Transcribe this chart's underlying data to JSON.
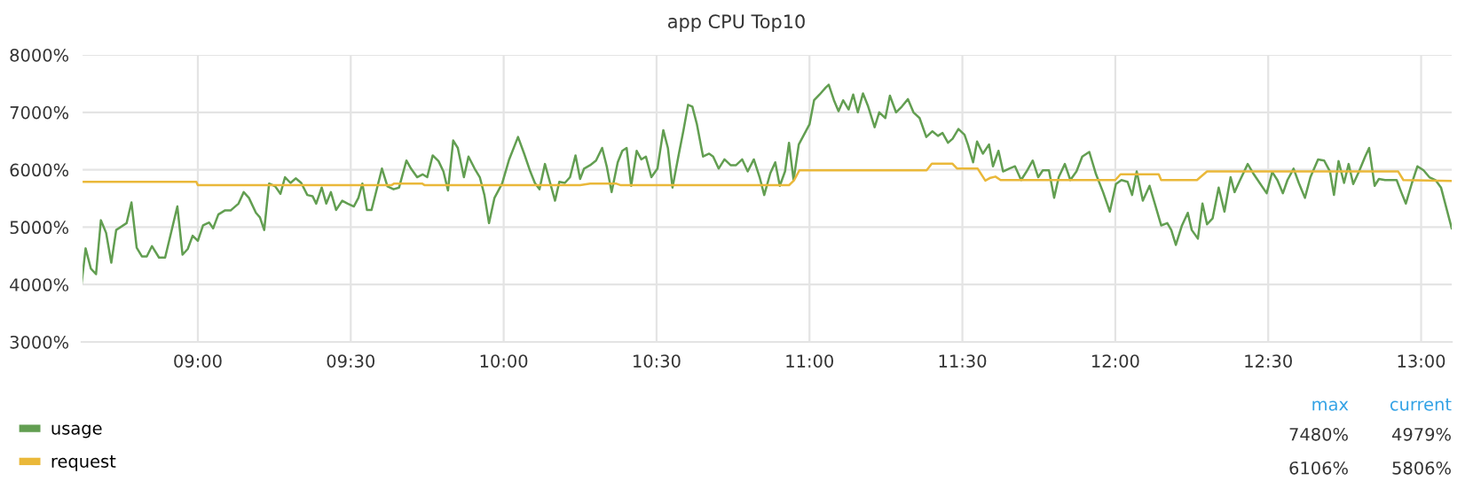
{
  "chart_data": {
    "type": "line",
    "title": "app CPU Top10",
    "xlim": [
      8.62,
      13.1
    ],
    "xticks": [
      {
        "value": 9,
        "label": "09:00"
      },
      {
        "value": 9.5,
        "label": "09:30"
      },
      {
        "value": 10,
        "label": "10:00"
      },
      {
        "value": 10.5,
        "label": "10:30"
      },
      {
        "value": 11,
        "label": "11:00"
      },
      {
        "value": 11.5,
        "label": "11:30"
      },
      {
        "value": 12,
        "label": "12:00"
      },
      {
        "value": 12.5,
        "label": "12:30"
      },
      {
        "value": 13,
        "label": "13:00"
      }
    ],
    "ylim": [
      3000,
      8000
    ],
    "yticks": [
      {
        "value": 3000,
        "label": "3000%"
      },
      {
        "value": 4000,
        "label": "4000%"
      },
      {
        "value": 5000,
        "label": "5000%"
      },
      {
        "value": 6000,
        "label": "6000%"
      },
      {
        "value": 7000,
        "label": "7000%"
      },
      {
        "value": 8000,
        "label": "8000%"
      }
    ],
    "grid": true,
    "legend": "bottom",
    "marker": "none",
    "line_style": "solid",
    "annotations": [
      "max",
      "current",
      "7480%",
      "4979%",
      "6106%",
      "5806%"
    ],
    "series": [
      {
        "name": "usage",
        "color": "#629e51",
        "x": [
          8.62,
          8.633,
          8.65,
          8.667,
          8.683,
          8.7,
          8.717,
          8.733,
          8.767,
          8.783,
          8.8,
          8.817,
          8.833,
          8.85,
          8.873,
          8.893,
          8.933,
          8.95,
          8.967,
          8.983,
          9.0,
          9.017,
          9.037,
          9.05,
          9.067,
          9.088,
          9.107,
          9.133,
          9.15,
          9.167,
          9.19,
          9.203,
          9.217,
          9.233,
          9.253,
          9.27,
          9.285,
          9.303,
          9.32,
          9.338,
          9.358,
          9.375,
          9.387,
          9.405,
          9.42,
          9.435,
          9.452,
          9.472,
          9.49,
          9.51,
          9.525,
          9.538,
          9.553,
          9.568,
          9.602,
          9.62,
          9.64,
          9.658,
          9.682,
          9.697,
          9.717,
          9.735,
          9.75,
          9.768,
          9.787,
          9.803,
          9.818,
          9.835,
          9.85,
          9.87,
          9.885,
          9.905,
          9.922,
          9.937,
          9.952,
          9.97,
          9.995,
          10.018,
          10.047,
          10.067,
          10.087,
          10.102,
          10.117,
          10.135,
          10.152,
          10.168,
          10.182,
          10.2,
          10.217,
          10.235,
          10.25,
          10.263,
          10.283,
          10.302,
          10.322,
          10.337,
          10.353,
          10.373,
          10.388,
          10.402,
          10.417,
          10.435,
          10.45,
          10.465,
          10.483,
          10.503,
          10.522,
          10.537,
          10.552,
          10.573,
          10.588,
          10.603,
          10.617,
          10.632,
          10.652,
          10.672,
          10.685,
          10.703,
          10.722,
          10.742,
          10.76,
          10.78,
          10.798,
          10.818,
          10.837,
          10.852,
          10.872,
          10.888,
          10.903,
          10.92,
          10.933,
          10.948,
          10.965,
          10.98,
          11.0,
          11.015,
          11.033,
          11.053,
          11.063,
          11.08,
          11.095,
          11.11,
          11.128,
          11.143,
          11.158,
          11.175,
          11.192,
          11.213,
          11.228,
          11.248,
          11.263,
          11.283,
          11.302,
          11.322,
          11.34,
          11.36,
          11.382,
          11.402,
          11.42,
          11.435,
          11.453,
          11.468,
          11.487,
          11.507,
          11.518,
          11.535,
          11.548,
          11.567,
          11.587,
          11.6,
          11.618,
          11.633,
          11.653,
          11.672,
          11.692,
          11.71,
          11.73,
          11.748,
          11.763,
          11.783,
          11.8,
          11.815,
          11.835,
          11.853,
          11.873,
          11.892,
          11.915,
          11.937,
          11.96,
          11.982,
          12.002,
          12.02,
          12.04,
          12.055,
          12.07,
          12.09,
          12.112,
          12.132,
          12.15,
          12.17,
          12.183,
          12.198,
          12.218,
          12.237,
          12.25,
          12.27,
          12.285,
          12.3,
          12.318,
          12.338,
          12.357,
          12.377,
          12.39,
          12.408,
          12.433,
          12.453,
          12.472,
          12.495,
          12.513,
          12.53,
          12.548,
          12.563,
          12.583,
          12.6,
          12.62,
          12.638,
          12.663,
          12.683,
          12.702,
          12.715,
          12.73,
          12.748,
          12.763,
          12.778,
          12.797,
          12.817,
          12.83,
          12.848,
          12.862,
          12.882,
          12.9,
          12.92,
          12.935,
          12.95,
          12.97,
          12.988,
          13.008,
          13.027,
          13.047,
          13.065,
          13.1
        ],
        "values": [
          4020,
          4630,
          4280,
          4180,
          5120,
          4900,
          4380,
          4950,
          5070,
          5430,
          4640,
          4490,
          4490,
          4670,
          4470,
          4470,
          5360,
          4520,
          4620,
          4850,
          4760,
          5030,
          5080,
          4980,
          5220,
          5290,
          5290,
          5410,
          5610,
          5510,
          5250,
          5170,
          4950,
          5760,
          5710,
          5580,
          5870,
          5770,
          5850,
          5770,
          5560,
          5540,
          5410,
          5690,
          5410,
          5610,
          5300,
          5460,
          5410,
          5360,
          5510,
          5760,
          5300,
          5300,
          6020,
          5710,
          5660,
          5690,
          6160,
          6020,
          5870,
          5920,
          5870,
          6250,
          6150,
          5970,
          5640,
          6510,
          6380,
          5870,
          6230,
          6020,
          5870,
          5560,
          5070,
          5510,
          5760,
          6180,
          6570,
          6280,
          5970,
          5770,
          5660,
          6100,
          5770,
          5460,
          5790,
          5770,
          5870,
          6250,
          5840,
          6020,
          6080,
          6160,
          6380,
          6060,
          5610,
          6130,
          6330,
          6380,
          5720,
          6330,
          6180,
          6230,
          5870,
          6020,
          6690,
          6380,
          5690,
          6280,
          6690,
          7130,
          7100,
          6790,
          6230,
          6280,
          6230,
          6020,
          6180,
          6080,
          6080,
          6180,
          5970,
          6180,
          5870,
          5560,
          5940,
          6130,
          5720,
          5970,
          6470,
          5820,
          6440,
          6590,
          6790,
          7210,
          7310,
          7430,
          7480,
          7210,
          7020,
          7210,
          7050,
          7310,
          7000,
          7330,
          7100,
          6740,
          7000,
          6900,
          7290,
          7000,
          7100,
          7230,
          7000,
          6900,
          6570,
          6670,
          6590,
          6640,
          6470,
          6540,
          6710,
          6610,
          6440,
          6130,
          6490,
          6280,
          6440,
          6060,
          6330,
          5970,
          6020,
          6060,
          5820,
          5970,
          6160,
          5870,
          5990,
          5990,
          5510,
          5870,
          6100,
          5820,
          5970,
          6230,
          6310,
          5920,
          5610,
          5270,
          5750,
          5820,
          5790,
          5560,
          5970,
          5460,
          5720,
          5360,
          5030,
          5070,
          4950,
          4690,
          5030,
          5250,
          4950,
          4800,
          5410,
          5050,
          5150,
          5690,
          5270,
          5870,
          5610,
          5820,
          6100,
          5920,
          5770,
          5590,
          5960,
          5820,
          5590,
          5820,
          6020,
          5770,
          5510,
          5870,
          6180,
          6160,
          5970,
          5560,
          6150,
          5770,
          6100,
          5750,
          5970,
          6230,
          6380,
          5720,
          5840,
          5820,
          5820,
          5820,
          5610,
          5410,
          5770,
          6060,
          5990,
          5870,
          5820,
          5690,
          4979
        ]
      },
      {
        "name": "request",
        "color": "#eab839",
        "x": [
          8.62,
          8.995,
          9.0,
          9.633,
          9.642,
          9.733,
          9.742,
          10.25,
          10.283,
          10.367,
          10.383,
          10.933,
          10.95,
          10.967,
          11.383,
          11.4,
          11.467,
          11.483,
          11.55,
          11.575,
          11.592,
          11.608,
          11.625,
          12.0,
          12.017,
          12.142,
          12.15,
          12.267,
          12.3,
          12.925,
          12.942,
          13.1
        ],
        "values": [
          5790,
          5790,
          5730,
          5730,
          5760,
          5760,
          5730,
          5730,
          5760,
          5760,
          5730,
          5730,
          5820,
          5990,
          5990,
          6106,
          6106,
          6020,
          6020,
          5810,
          5860,
          5880,
          5820,
          5820,
          5920,
          5920,
          5820,
          5820,
          5970,
          5970,
          5820,
          5806
        ]
      }
    ]
  }
}
